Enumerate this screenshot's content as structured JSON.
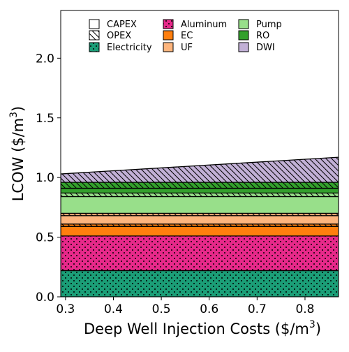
{
  "chart_data": {
    "type": "area",
    "xlabel": "Deep Well Injection Costs ($/m",
    "xlabel_sup": "3",
    "xlabel_end": ")",
    "ylabel": "LCOW ($/m",
    "ylabel_sup": "3",
    "ylabel_end": ")",
    "xlim": [
      0.29,
      0.87
    ],
    "ylim": [
      0.0,
      2.4
    ],
    "x_ticks": [
      0.3,
      0.4,
      0.5,
      0.6,
      0.7,
      0.8
    ],
    "x_tick_labels": [
      "0.3",
      "0.4",
      "0.5",
      "0.6",
      "0.7",
      "0.8"
    ],
    "y_ticks": [
      0.0,
      0.5,
      1.0,
      1.5,
      2.0
    ],
    "y_tick_labels": [
      "0.0",
      "0.5",
      "1.0",
      "1.5",
      "2.0"
    ],
    "x": [
      0.29,
      0.87
    ],
    "legend_position": "top",
    "legend": [
      {
        "label": "CAPEX",
        "color": "#ffffff",
        "hatch": "none"
      },
      {
        "label": "OPEX",
        "color": "#ffffff",
        "hatch": "diag"
      },
      {
        "label": "Electricity",
        "color": "#1b9e77",
        "hatch": "dots"
      },
      {
        "label": "Aluminum",
        "color": "#e7298a",
        "hatch": "dots"
      },
      {
        "label": "EC",
        "color": "#ff7f0e",
        "hatch": "none"
      },
      {
        "label": "UF",
        "color": "#fdb57d",
        "hatch": "none"
      },
      {
        "label": "Pump",
        "color": "#98df8a",
        "hatch": "none"
      },
      {
        "label": "RO",
        "color": "#33a02c",
        "hatch": "none"
      },
      {
        "label": "DWI",
        "color": "#c2b0d6",
        "hatch": "none"
      }
    ],
    "series": [
      {
        "name": "Electricity",
        "category": "OPEX",
        "color": "#1b9e77",
        "hatch": "dots",
        "values": [
          0.22,
          0.22
        ]
      },
      {
        "name": "Aluminum",
        "category": "OPEX",
        "color": "#e7298a",
        "hatch": "dots",
        "values": [
          0.29,
          0.29
        ]
      },
      {
        "name": "EC",
        "category": "CAPEX",
        "color": "#ff7f0e",
        "hatch": "none",
        "values": [
          0.08,
          0.08
        ]
      },
      {
        "name": "EC",
        "category": "OPEX",
        "color": "#ff7f0e",
        "hatch": "diag",
        "values": [
          0.02,
          0.02
        ]
      },
      {
        "name": "UF",
        "category": "CAPEX",
        "color": "#fdb57d",
        "hatch": "none",
        "values": [
          0.07,
          0.07
        ]
      },
      {
        "name": "UF",
        "category": "OPEX",
        "color": "#fdb57d",
        "hatch": "diag",
        "values": [
          0.02,
          0.02
        ]
      },
      {
        "name": "Pump",
        "category": "CAPEX",
        "color": "#98df8a",
        "hatch": "none",
        "values": [
          0.14,
          0.14
        ]
      },
      {
        "name": "Pump",
        "category": "OPEX",
        "color": "#98df8a",
        "hatch": "diag",
        "values": [
          0.03,
          0.03
        ]
      },
      {
        "name": "RO",
        "category": "CAPEX",
        "color": "#33a02c",
        "hatch": "none",
        "values": [
          0.04,
          0.04
        ]
      },
      {
        "name": "RO",
        "category": "OPEX",
        "color": "#33a02c",
        "hatch": "diag",
        "values": [
          0.05,
          0.05
        ]
      },
      {
        "name": "DWI",
        "category": "OPEX",
        "color": "#c2b0d6",
        "hatch": "diag",
        "values": [
          0.07,
          0.21
        ]
      }
    ]
  }
}
